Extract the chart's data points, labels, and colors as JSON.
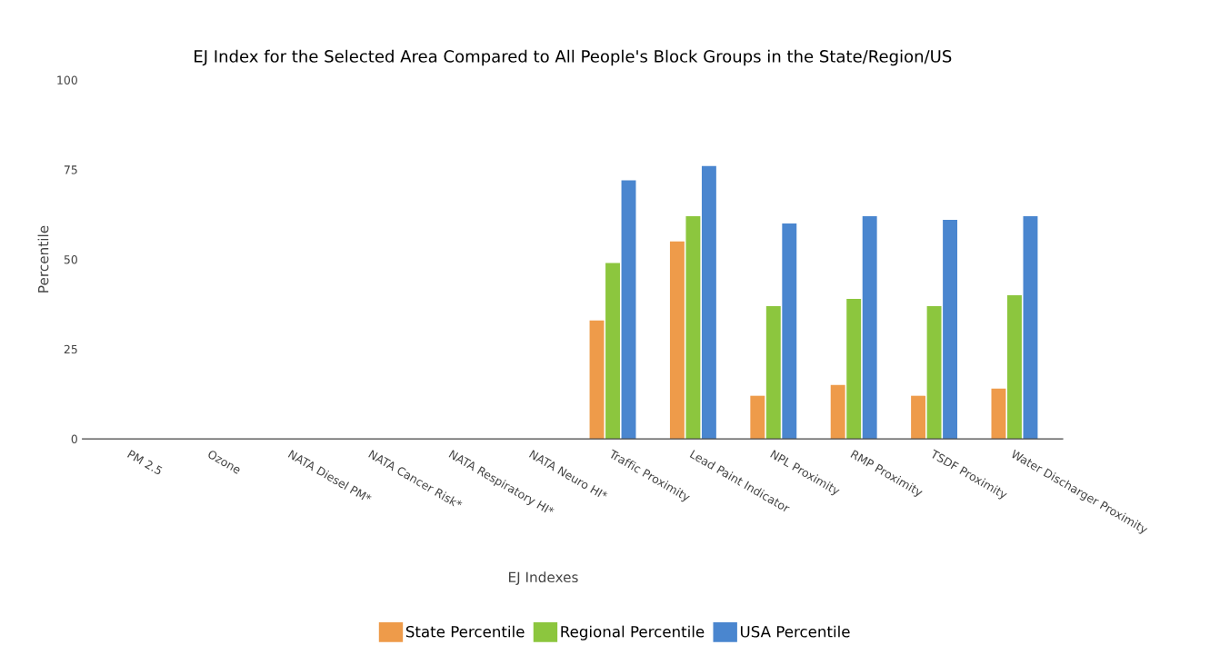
{
  "chart_data": {
    "type": "bar",
    "title": "EJ Index for the Selected Area Compared to All People's Block Groups in the State/Region/US",
    "xlabel": "EJ Indexes",
    "ylabel": "Percentile",
    "categories": [
      "PM 2.5",
      "Ozone",
      "NATA Diesel PM*",
      "NATA Cancer Risk*",
      "NATA Respiratory HI*",
      "NATA Neuro HI*",
      "Traffic Proximity",
      "Lead Paint Indicator",
      "NPL Proximity",
      "RMP Proximity",
      "TSDF Proximity",
      "Water Discharger Proximity"
    ],
    "series": [
      {
        "name": "State Percentile",
        "color": "#ee9b4a",
        "values": [
          null,
          null,
          null,
          null,
          null,
          null,
          33,
          55,
          12,
          15,
          12,
          14
        ]
      },
      {
        "name": "Regional Percentile",
        "color": "#8cc63e",
        "values": [
          null,
          null,
          null,
          null,
          null,
          null,
          49,
          62,
          37,
          39,
          37,
          40
        ]
      },
      {
        "name": "USA Percentile",
        "color": "#4a86cf",
        "values": [
          null,
          null,
          null,
          null,
          null,
          null,
          72,
          76,
          60,
          62,
          61,
          62
        ]
      }
    ],
    "ylim": [
      0,
      100
    ],
    "yticks": [
      0,
      25,
      50,
      75,
      100
    ],
    "grid": false,
    "legend": "bottom"
  }
}
